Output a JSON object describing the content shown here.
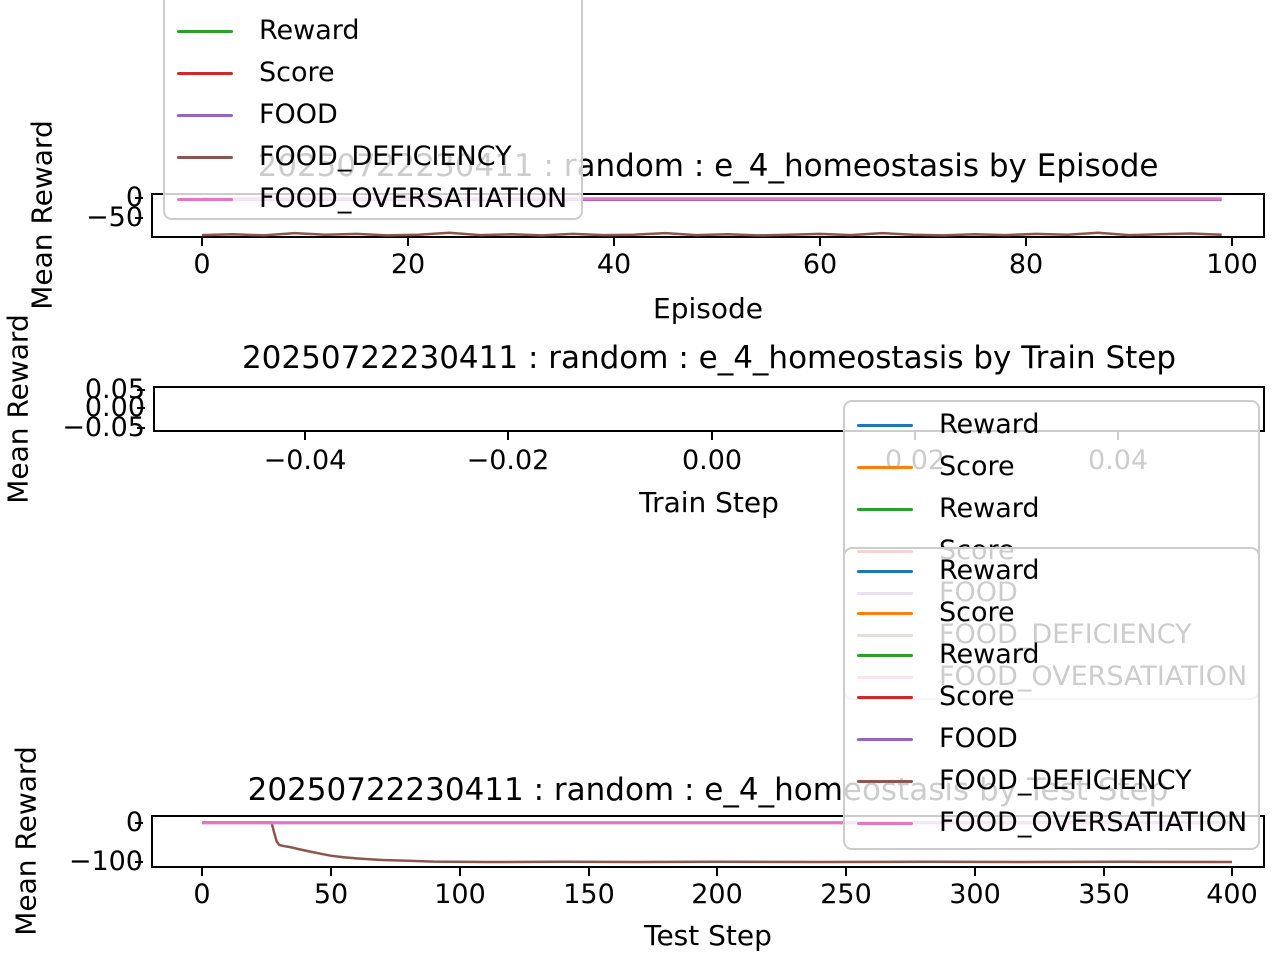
{
  "figure": {
    "background": "#ffffff"
  },
  "colors": {
    "blue": "#1f77b4",
    "orange": "#ff7f0e",
    "green": "#2ca02c",
    "red": "#d62728",
    "purple": "#9467bd",
    "brown": "#8c564b",
    "pink": "#e377c2",
    "axis": "#000000",
    "legend_border": "#cccccc"
  },
  "plots": [
    {
      "title": "20250722230411 : random : e_4_homeostasis by Episode",
      "xlabel": "Episode",
      "ylabel": "Mean Reward",
      "xticks": [
        "0",
        "20",
        "40",
        "60",
        "80",
        "100"
      ],
      "yticks": [
        "0",
        "−50"
      ]
    },
    {
      "title": "20250722230411 : random : e_4_homeostasis by Train Step",
      "xlabel": "Train Step",
      "ylabel": "Mean Reward",
      "xticks": [
        "−0.04",
        "−0.02",
        "0.00",
        "0.02",
        "0.04"
      ],
      "yticks": [
        "0.05",
        "0.00",
        "−0.05"
      ]
    },
    {
      "title": "20250722230411 : random : e_4_homeostasis by Test Step",
      "xlabel": "Test Step",
      "ylabel": "Mean Reward",
      "xticks": [
        "0",
        "50",
        "100",
        "150",
        "200",
        "250",
        "300",
        "350",
        "400"
      ],
      "yticks": [
        "0",
        "−100"
      ]
    }
  ],
  "legends": [
    {
      "entries": [
        {
          "label": "Reward",
          "color": "#2ca02c"
        },
        {
          "label": "Score",
          "color": "#d62728"
        },
        {
          "label": "FOOD",
          "color": "#9467bd"
        },
        {
          "label": "FOOD_DEFICIENCY",
          "color": "#8c564b"
        },
        {
          "label": "FOOD_OVERSATIATION",
          "color": "#e377c2"
        }
      ]
    },
    {
      "entries": [
        {
          "label": "Reward",
          "color": "#1f77b4"
        },
        {
          "label": "Score",
          "color": "#ff7f0e"
        },
        {
          "label": "Reward",
          "color": "#2ca02c"
        },
        {
          "label": "Score",
          "color": "#d62728"
        },
        {
          "label": "FOOD",
          "color": "#9467bd"
        },
        {
          "label": "FOOD_DEFICIENCY",
          "color": "#8c564b"
        },
        {
          "label": "FOOD_OVERSATIATION",
          "color": "#e377c2"
        }
      ]
    },
    {
      "entries": [
        {
          "label": "Reward",
          "color": "#1f77b4"
        },
        {
          "label": "Score",
          "color": "#ff7f0e"
        },
        {
          "label": "Reward",
          "color": "#2ca02c"
        },
        {
          "label": "Score",
          "color": "#d62728"
        },
        {
          "label": "FOOD",
          "color": "#9467bd"
        },
        {
          "label": "FOOD_DEFICIENCY",
          "color": "#8c564b"
        },
        {
          "label": "FOOD_OVERSATIATION",
          "color": "#e377c2"
        }
      ]
    }
  ],
  "chart_data": [
    {
      "type": "line",
      "title": "20250722230411 : random : e_4_homeostasis by Episode",
      "xlabel": "Episode",
      "ylabel": "Mean Reward",
      "xlim": [
        -5,
        105
      ],
      "ylim": [
        -103,
        13
      ],
      "xtick_values": [
        0,
        20,
        40,
        60,
        80,
        100
      ],
      "ytick_values": [
        0,
        -50
      ],
      "legend_position": "upper-left (cut off at figure top)",
      "series": [
        {
          "name": "FOOD_DEFICIENCY",
          "color": "#8c564b",
          "x": [
            0,
            3,
            6,
            9,
            12,
            15,
            18,
            21,
            24,
            27,
            30,
            33,
            36,
            39,
            42,
            45,
            48,
            51,
            54,
            57,
            60,
            63,
            66,
            69,
            72,
            75,
            78,
            81,
            84,
            87,
            90,
            93,
            96,
            99
          ],
          "y": [
            -95,
            -93,
            -96,
            -90,
            -94,
            -92,
            -96,
            -94,
            -89,
            -95,
            -93,
            -96,
            -92,
            -95,
            -94,
            -90,
            -95,
            -93,
            -96,
            -94,
            -92,
            -95,
            -90,
            -94,
            -96,
            -93,
            -95,
            -92,
            -94,
            -89,
            -95,
            -93,
            -91,
            -94
          ]
        },
        {
          "name": "FOOD",
          "color": "#9467bd",
          "x": [
            0,
            99
          ],
          "y": [
            -5,
            -5
          ]
        },
        {
          "name": "FOOD_OVERSATIATION",
          "color": "#e377c2",
          "x": [
            0,
            99
          ],
          "y": [
            -2,
            -2
          ]
        }
      ]
    },
    {
      "type": "line",
      "title": "20250722230411 : random : e_4_homeostasis by Train Step",
      "xlabel": "Train Step",
      "ylabel": "Mean Reward",
      "xlim": [
        -0.055,
        0.056
      ],
      "ylim": [
        -0.056,
        0.058
      ],
      "xtick_values": [
        -0.04,
        -0.02,
        0.0,
        0.02,
        0.04
      ],
      "ytick_values": [
        0.05,
        0.0,
        -0.05
      ],
      "legend_position": "right (extends below axes)",
      "series": []
    },
    {
      "type": "line",
      "title": "20250722230411 : random : e_4_homeostasis by Test Step",
      "xlabel": "Test Step",
      "ylabel": "Mean Reward",
      "xlim": [
        -20,
        413
      ],
      "ylim": [
        -115,
        19
      ],
      "xtick_values": [
        0,
        50,
        100,
        150,
        200,
        250,
        300,
        350,
        400
      ],
      "ytick_values": [
        0,
        -100
      ],
      "legend_position": "upper-right (overlaps middle legend)",
      "series": [
        {
          "name": "Reward",
          "color": "#1f77b4",
          "x": [
            0,
            400
          ],
          "y": [
            0,
            0
          ]
        },
        {
          "name": "FOOD_DEFICIENCY",
          "color": "#8c564b",
          "x": [
            0,
            27,
            28,
            29,
            30,
            32,
            34,
            36,
            38,
            40,
            43,
            46,
            50,
            55,
            60,
            65,
            70,
            80,
            90,
            110,
            140,
            170,
            200,
            240,
            280,
            320,
            360,
            400
          ],
          "y": [
            0,
            0,
            -25,
            -48,
            -57,
            -60,
            -62,
            -65,
            -68,
            -71,
            -75,
            -79,
            -84,
            -88,
            -91,
            -93,
            -95,
            -97,
            -99,
            -100,
            -99.5,
            -100,
            -99.5,
            -100,
            -99.5,
            -100,
            -99.5,
            -100
          ]
        },
        {
          "name": "FOOD_OVERSATIATION",
          "color": "#e377c2",
          "x": [
            0,
            400
          ],
          "y": [
            -1,
            -1
          ]
        }
      ]
    }
  ]
}
